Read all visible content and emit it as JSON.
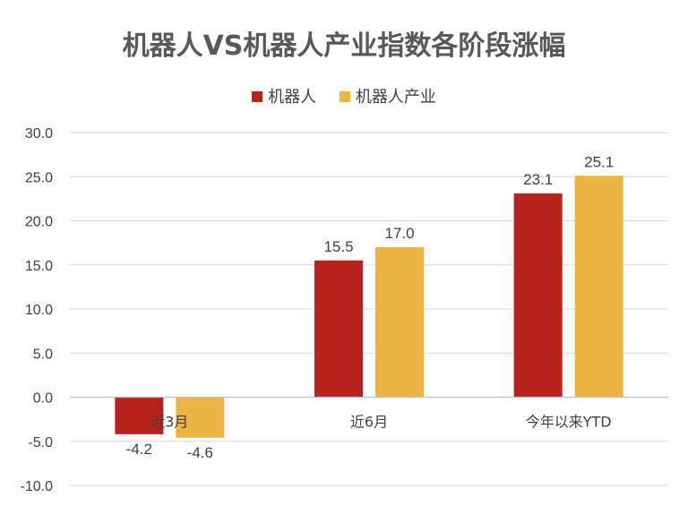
{
  "chart_data": {
    "type": "bar",
    "title": "机器人VS机器人产业指数各阶段涨幅",
    "categories": [
      "近3月",
      "近6月",
      "今年以来YTD"
    ],
    "series": [
      {
        "name": "机器人",
        "values": [
          -4.2,
          15.5,
          23.1
        ],
        "color": "#B7221D"
      },
      {
        "name": "机器人产业",
        "values": [
          -4.6,
          17.0,
          25.1
        ],
        "color": "#EBB444"
      }
    ],
    "ylim": [
      -10,
      30
    ],
    "yticks": [
      "-10.0",
      "-5.0",
      "0.0",
      "5.0",
      "10.0",
      "15.0",
      "20.0",
      "25.0",
      "30.0"
    ],
    "data_labels": [
      [
        "-4.2",
        "15.5",
        "23.1"
      ],
      [
        "-4.6",
        "17.0",
        "25.1"
      ]
    ],
    "legend_position": "top",
    "grid": true,
    "xlabel": "",
    "ylabel": ""
  }
}
